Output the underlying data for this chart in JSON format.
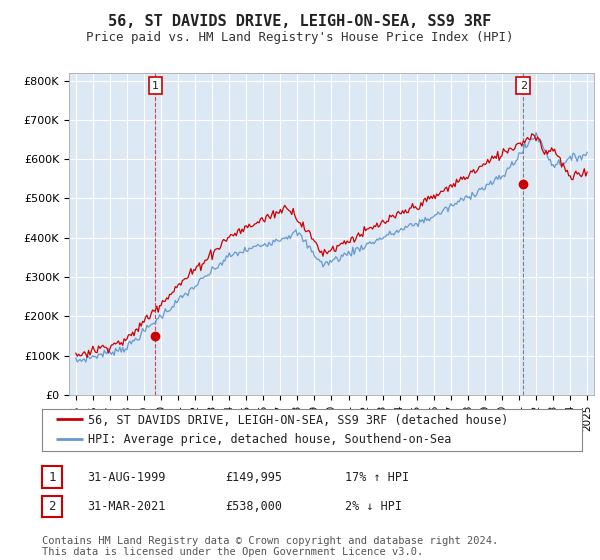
{
  "title": "56, ST DAVIDS DRIVE, LEIGH-ON-SEA, SS9 3RF",
  "subtitle": "Price paid vs. HM Land Registry's House Price Index (HPI)",
  "ytick_labels": [
    "£0",
    "£100K",
    "£200K",
    "£300K",
    "£400K",
    "£500K",
    "£600K",
    "£700K",
    "£800K"
  ],
  "yticks": [
    0,
    100000,
    200000,
    300000,
    400000,
    500000,
    600000,
    700000,
    800000
  ],
  "ylim": [
    0,
    820000
  ],
  "legend_line1": "56, ST DAVIDS DRIVE, LEIGH-ON-SEA, SS9 3RF (detached house)",
  "legend_line2": "HPI: Average price, detached house, Southend-on-Sea",
  "sale1_label": "1",
  "sale1_date": "31-AUG-1999",
  "sale1_price": "£149,995",
  "sale1_hpi": "17% ↑ HPI",
  "sale2_label": "2",
  "sale2_date": "31-MAR-2021",
  "sale2_price": "£538,000",
  "sale2_hpi": "2% ↓ HPI",
  "footnote": "Contains HM Land Registry data © Crown copyright and database right 2024.\nThis data is licensed under the Open Government Licence v3.0.",
  "sale_color": "#cc0000",
  "hpi_color": "#6699cc",
  "bg_color": "#ffffff",
  "plot_bg": "#dde8f5",
  "grid_color": "#ffffff",
  "title_fontsize": 11,
  "subtitle_fontsize": 9,
  "tick_fontsize": 8,
  "legend_fontsize": 8.5,
  "footnote_fontsize": 7.5,
  "sale1_year": 1999.667,
  "sale1_val": 149995,
  "sale2_year": 2021.25,
  "sale2_val": 538000
}
